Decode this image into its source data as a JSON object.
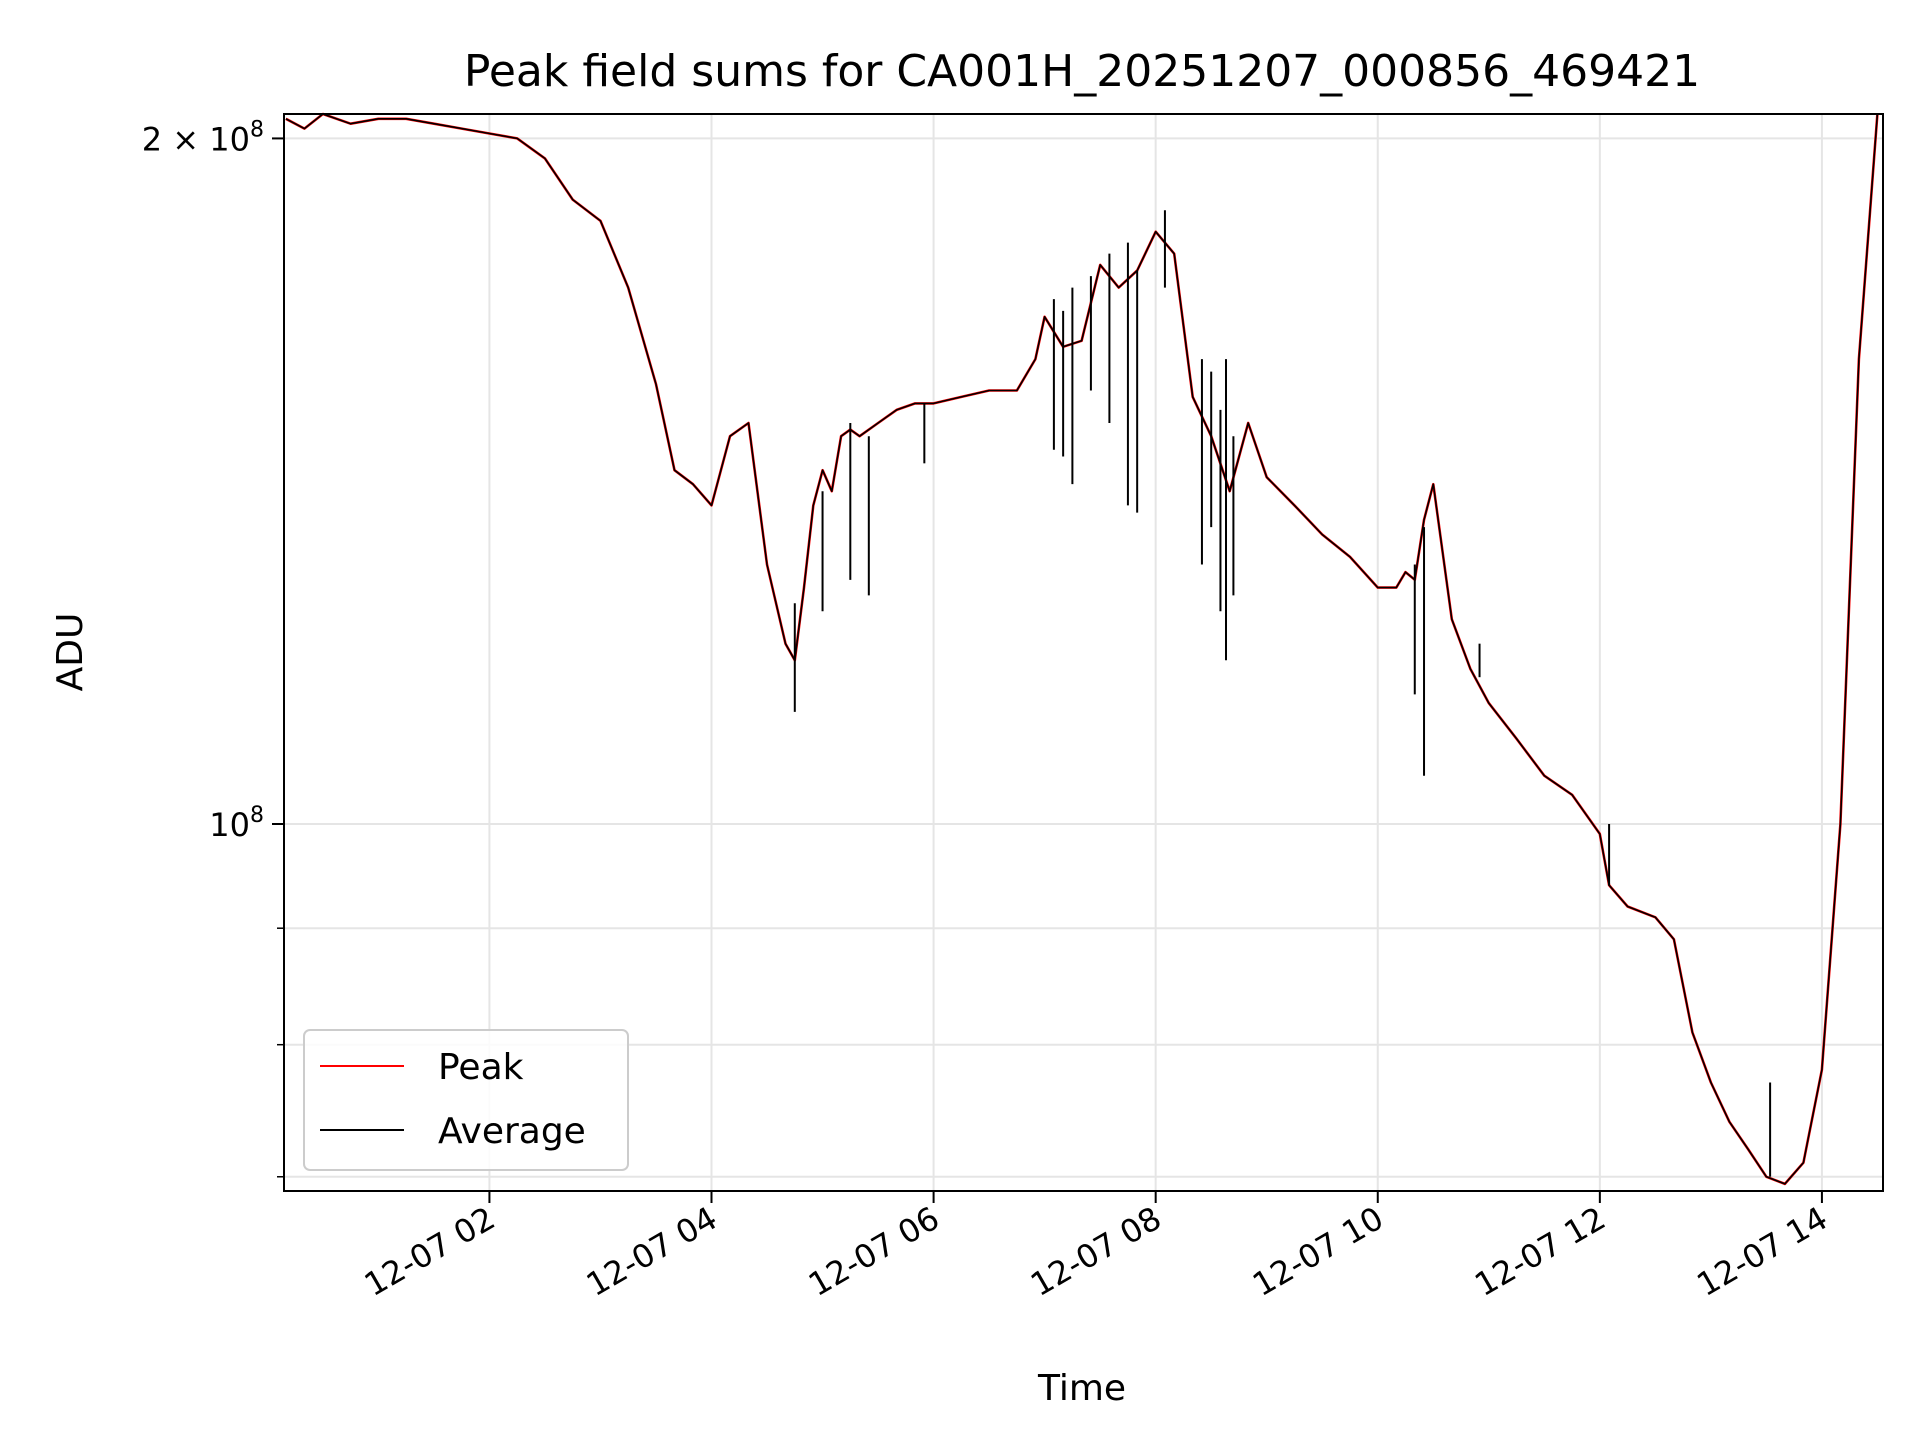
{
  "chart_data": {
    "type": "line",
    "title": "Peak field sums for CA001H_20251207_000856_469421",
    "xlabel": "Time",
    "ylabel": "ADU",
    "y_scale": "log",
    "ylim": [
      69000000,
      205000000
    ],
    "xlim": [
      "2025-12-07 00:09",
      "2025-12-07 14:33"
    ],
    "x_ticks": [
      {
        "value": "2025-12-07 02:00",
        "label": "12-07 02"
      },
      {
        "value": "2025-12-07 04:00",
        "label": "12-07 04"
      },
      {
        "value": "2025-12-07 06:00",
        "label": "12-07 06"
      },
      {
        "value": "2025-12-07 08:00",
        "label": "12-07 08"
      },
      {
        "value": "2025-12-07 10:00",
        "label": "12-07 10"
      },
      {
        "value": "2025-12-07 12:00",
        "label": "12-07 12"
      },
      {
        "value": "2025-12-07 14:00",
        "label": "12-07 14"
      }
    ],
    "y_ticks": [
      {
        "value": 200000000,
        "label_base": "2 × 10",
        "label_exp": "8"
      },
      {
        "value": 100000000,
        "label_base": "10",
        "label_exp": "8"
      }
    ],
    "y_minor_ticks": [
      70000000,
      80000000,
      90000000
    ],
    "grid": true,
    "legend_position": "lower-left",
    "x": [
      "2025-12-07 00:10",
      "2025-12-07 00:20",
      "2025-12-07 00:30",
      "2025-12-07 00:45",
      "2025-12-07 01:00",
      "2025-12-07 01:15",
      "2025-12-07 01:30",
      "2025-12-07 01:45",
      "2025-12-07 02:00",
      "2025-12-07 02:15",
      "2025-12-07 02:30",
      "2025-12-07 02:45",
      "2025-12-07 03:00",
      "2025-12-07 03:15",
      "2025-12-07 03:30",
      "2025-12-07 03:40",
      "2025-12-07 03:50",
      "2025-12-07 04:00",
      "2025-12-07 04:10",
      "2025-12-07 04:20",
      "2025-12-07 04:30",
      "2025-12-07 04:40",
      "2025-12-07 04:45",
      "2025-12-07 04:50",
      "2025-12-07 04:55",
      "2025-12-07 05:00",
      "2025-12-07 05:05",
      "2025-12-07 05:10",
      "2025-12-07 05:15",
      "2025-12-07 05:20",
      "2025-12-07 05:30",
      "2025-12-07 05:40",
      "2025-12-07 05:50",
      "2025-12-07 06:00",
      "2025-12-07 06:15",
      "2025-12-07 06:30",
      "2025-12-07 06:45",
      "2025-12-07 06:55",
      "2025-12-07 07:00",
      "2025-12-07 07:10",
      "2025-12-07 07:20",
      "2025-12-07 07:30",
      "2025-12-07 07:40",
      "2025-12-07 07:50",
      "2025-12-07 08:00",
      "2025-12-07 08:10",
      "2025-12-07 08:20",
      "2025-12-07 08:30",
      "2025-12-07 08:40",
      "2025-12-07 08:50",
      "2025-12-07 09:00",
      "2025-12-07 09:15",
      "2025-12-07 09:30",
      "2025-12-07 09:45",
      "2025-12-07 10:00",
      "2025-12-07 10:10",
      "2025-12-07 10:15",
      "2025-12-07 10:20",
      "2025-12-07 10:25",
      "2025-12-07 10:30",
      "2025-12-07 10:40",
      "2025-12-07 10:50",
      "2025-12-07 11:00",
      "2025-12-07 11:15",
      "2025-12-07 11:30",
      "2025-12-07 11:45",
      "2025-12-07 12:00",
      "2025-12-07 12:05",
      "2025-12-07 12:15",
      "2025-12-07 12:30",
      "2025-12-07 12:40",
      "2025-12-07 12:50",
      "2025-12-07 13:00",
      "2025-12-07 13:10",
      "2025-12-07 13:20",
      "2025-12-07 13:30",
      "2025-12-07 13:40",
      "2025-12-07 13:50",
      "2025-12-07 14:00",
      "2025-12-07 14:10",
      "2025-12-07 14:20",
      "2025-12-07 14:30"
    ],
    "series": [
      {
        "name": "Peak",
        "color": "#ff0000",
        "values": [
          204000000,
          202000000,
          205000000,
          203000000,
          204000000,
          204000000,
          203000000,
          202000000,
          201000000,
          200000000,
          196000000,
          188000000,
          184000000,
          172000000,
          156000000,
          143000000,
          141000000,
          138000000,
          148000000,
          150000000,
          130000000,
          120000000,
          118000000,
          127000000,
          138000000,
          143000000,
          140000000,
          148000000,
          149000000,
          148000000,
          150000000,
          152000000,
          153000000,
          153000000,
          154000000,
          155000000,
          155000000,
          160000000,
          167000000,
          162000000,
          163000000,
          176000000,
          172000000,
          175000000,
          182000000,
          178000000,
          154000000,
          148000000,
          140000000,
          150000000,
          142000000,
          138000000,
          134000000,
          131000000,
          127000000,
          127000000,
          129000000,
          128000000,
          136000000,
          141000000,
          123000000,
          117000000,
          113000000,
          109000000,
          105000000,
          103000000,
          99000000,
          94000000,
          92000000,
          91000000,
          89000000,
          81000000,
          77000000,
          74000000,
          72000000,
          70000000,
          69500000,
          71000000,
          78000000,
          100000000,
          160000000,
          205000000
        ]
      },
      {
        "name": "Average",
        "color": "#000000",
        "values": [
          204000000,
          202000000,
          205000000,
          203000000,
          204000000,
          204000000,
          203000000,
          202000000,
          201000000,
          200000000,
          196000000,
          188000000,
          184000000,
          172000000,
          156000000,
          143000000,
          141000000,
          138000000,
          148000000,
          150000000,
          130000000,
          120000000,
          118000000,
          127000000,
          138000000,
          143000000,
          140000000,
          148000000,
          149000000,
          148000000,
          150000000,
          152000000,
          153000000,
          153000000,
          154000000,
          155000000,
          155000000,
          160000000,
          167000000,
          162000000,
          163000000,
          176000000,
          172000000,
          175000000,
          182000000,
          178000000,
          154000000,
          148000000,
          140000000,
          150000000,
          142000000,
          138000000,
          134000000,
          131000000,
          127000000,
          127000000,
          129000000,
          128000000,
          136000000,
          141000000,
          123000000,
          117000000,
          113000000,
          109000000,
          105000000,
          103000000,
          99000000,
          94000000,
          92000000,
          91000000,
          89000000,
          81000000,
          77000000,
          74000000,
          72000000,
          70000000,
          69500000,
          71000000,
          78000000,
          100000000,
          160000000,
          205000000
        ]
      }
    ],
    "spikes": [
      {
        "x": "2025-12-07 04:45",
        "low": 112000000,
        "high": 125000000
      },
      {
        "x": "2025-12-07 05:00",
        "low": 124000000,
        "high": 140000000
      },
      {
        "x": "2025-12-07 05:15",
        "low": 128000000,
        "high": 150000000
      },
      {
        "x": "2025-12-07 05:25",
        "low": 126000000,
        "high": 148000000
      },
      {
        "x": "2025-12-07 05:55",
        "low": 144000000,
        "high": 153000000
      },
      {
        "x": "2025-12-07 07:05",
        "low": 146000000,
        "high": 170000000
      },
      {
        "x": "2025-12-07 07:10",
        "low": 145000000,
        "high": 168000000
      },
      {
        "x": "2025-12-07 07:15",
        "low": 141000000,
        "high": 172000000
      },
      {
        "x": "2025-12-07 07:25",
        "low": 155000000,
        "high": 174000000
      },
      {
        "x": "2025-12-07 07:35",
        "low": 150000000,
        "high": 178000000
      },
      {
        "x": "2025-12-07 07:45",
        "low": 138000000,
        "high": 180000000
      },
      {
        "x": "2025-12-07 07:50",
        "low": 137000000,
        "high": 175000000
      },
      {
        "x": "2025-12-07 08:05",
        "low": 172000000,
        "high": 186000000
      },
      {
        "x": "2025-12-07 08:25",
        "low": 130000000,
        "high": 160000000
      },
      {
        "x": "2025-12-07 08:30",
        "low": 135000000,
        "high": 158000000
      },
      {
        "x": "2025-12-07 08:35",
        "low": 124000000,
        "high": 152000000
      },
      {
        "x": "2025-12-07 08:38",
        "low": 118000000,
        "high": 160000000
      },
      {
        "x": "2025-12-07 08:42",
        "low": 126000000,
        "high": 148000000
      },
      {
        "x": "2025-12-07 10:20",
        "low": 114000000,
        "high": 130000000
      },
      {
        "x": "2025-12-07 10:25",
        "low": 105000000,
        "high": 135000000
      },
      {
        "x": "2025-12-07 10:55",
        "low": 116000000,
        "high": 120000000
      },
      {
        "x": "2025-12-07 12:05",
        "low": 94000000,
        "high": 100000000
      },
      {
        "x": "2025-12-07 13:32",
        "low": 70000000,
        "high": 77000000
      }
    ]
  }
}
